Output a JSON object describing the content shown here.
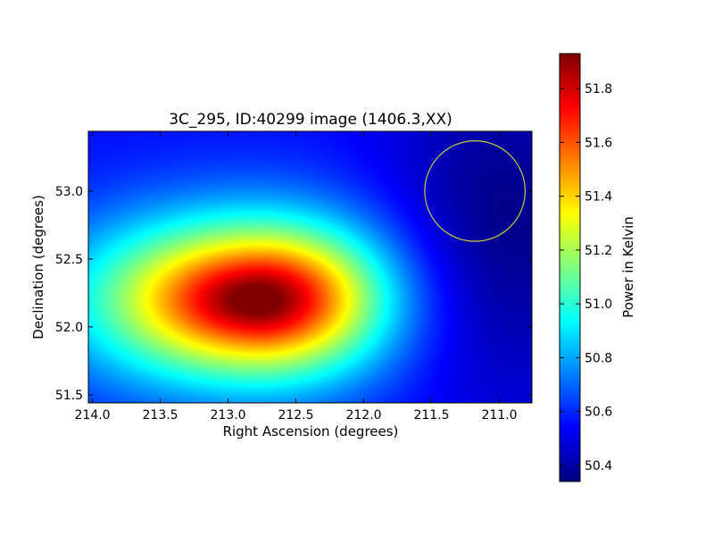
{
  "chart_data": {
    "type": "heatmap",
    "title": "3C_295, ID:40299 image (1406.3,XX)",
    "xlabel": "Right Ascension (degrees)",
    "ylabel": "Declination (degrees)",
    "xlim": [
      214.03,
      210.76
    ],
    "ylim": [
      51.44,
      53.44
    ],
    "x_ticks": [
      {
        "value": 214.0,
        "label": "214.0"
      },
      {
        "value": 213.5,
        "label": "213.5"
      },
      {
        "value": 213.0,
        "label": "213.0"
      },
      {
        "value": 212.5,
        "label": "212.5"
      },
      {
        "value": 212.0,
        "label": "212.0"
      },
      {
        "value": 211.5,
        "label": "211.5"
      },
      {
        "value": 211.0,
        "label": "211.0"
      }
    ],
    "y_ticks": [
      {
        "value": 51.5,
        "label": "51.5"
      },
      {
        "value": 52.0,
        "label": "52.0"
      },
      {
        "value": 52.5,
        "label": "52.5"
      },
      {
        "value": 53.0,
        "label": "53.0"
      }
    ],
    "colorbar": {
      "label": "Power in Kelvin",
      "min": 50.34,
      "max": 51.93,
      "colormap": "jet",
      "ticks": [
        {
          "value": 50.4,
          "label": "50.4"
        },
        {
          "value": 50.6,
          "label": "50.6"
        },
        {
          "value": 50.8,
          "label": "50.8"
        },
        {
          "value": 51.0,
          "label": "51.0"
        },
        {
          "value": 51.2,
          "label": "51.2"
        },
        {
          "value": 51.4,
          "label": "51.4"
        },
        {
          "value": 51.6,
          "label": "51.6"
        },
        {
          "value": 51.8,
          "label": "51.8"
        }
      ]
    },
    "grid": false,
    "field": {
      "background": 50.55,
      "peak": {
        "ra": 212.83,
        "dec": 52.2,
        "value": 51.93
      },
      "low": {
        "ra": 211.0,
        "dec": 52.7,
        "value": 50.34
      }
    },
    "annotations": [
      {
        "type": "circle",
        "ra": 211.18,
        "dec": 53.0,
        "radius_deg": 0.37,
        "color": "#cccc33"
      }
    ]
  }
}
